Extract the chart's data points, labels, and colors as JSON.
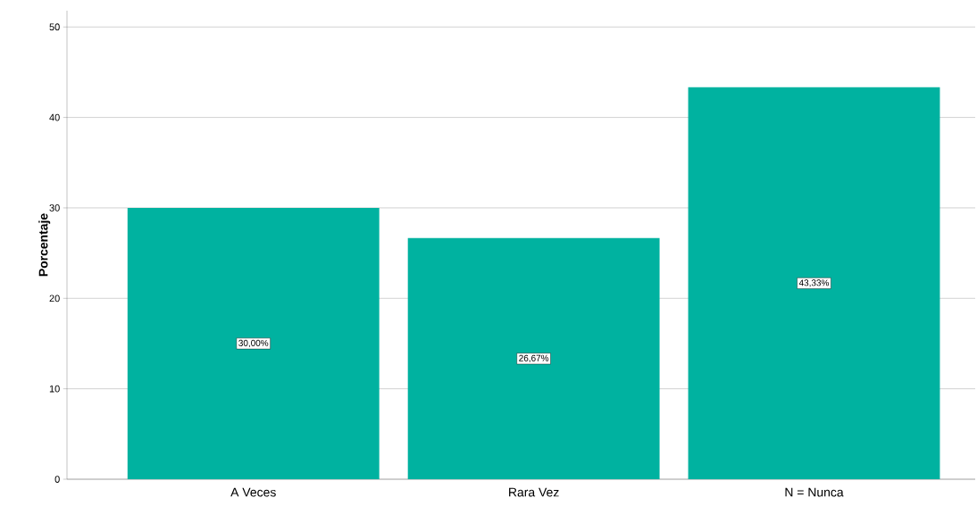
{
  "chart_data": {
    "type": "bar",
    "ylabel": "Porcentaje",
    "categories": [
      "A Veces",
      "Rara Vez",
      "N = Nunca"
    ],
    "values": [
      30,
      26.67,
      43.33
    ],
    "value_labels": [
      "30,00%",
      "26,67%",
      "43,33%"
    ],
    "color": "#00b2a0",
    "ylim": [
      0,
      51.8
    ],
    "yticks": [
      0,
      10,
      20,
      30,
      40,
      50
    ],
    "grid": "y"
  }
}
